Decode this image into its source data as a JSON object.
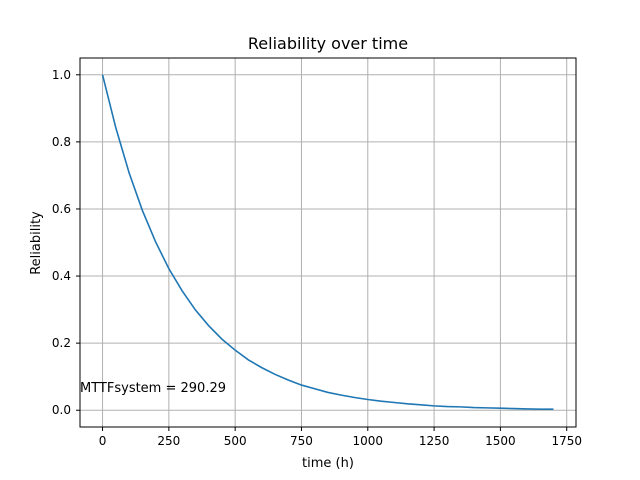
{
  "chart_data": {
    "type": "line",
    "title": "Reliability over time",
    "xlabel": "time (h)",
    "ylabel": "Reliability",
    "xlim": [
      -85,
      1785
    ],
    "ylim": [
      -0.05,
      1.05
    ],
    "xticks": [
      0,
      250,
      500,
      750,
      1000,
      1250,
      1500,
      1750
    ],
    "yticks": [
      0.0,
      0.2,
      0.4,
      0.6,
      0.8,
      1.0
    ],
    "xtick_labels": [
      "0",
      "250",
      "500",
      "750",
      "1000",
      "1250",
      "1500",
      "1750"
    ],
    "ytick_labels": [
      "0.0",
      "0.2",
      "0.4",
      "0.6",
      "0.8",
      "1.0"
    ],
    "grid": true,
    "series": [
      {
        "color": "#1f77b4",
        "x": [
          0,
          50,
          100,
          150,
          200,
          250,
          300,
          350,
          400,
          450,
          500,
          550,
          600,
          650,
          700,
          750,
          800,
          850,
          900,
          950,
          1000,
          1050,
          1100,
          1150,
          1200,
          1250,
          1300,
          1350,
          1400,
          1450,
          1500,
          1550,
          1600,
          1650,
          1700
        ],
        "y": [
          1.0,
          0.842,
          0.708,
          0.596,
          0.502,
          0.422,
          0.356,
          0.299,
          0.252,
          0.212,
          0.179,
          0.15,
          0.127,
          0.107,
          0.09,
          0.075,
          0.064,
          0.053,
          0.045,
          0.038,
          0.032,
          0.027,
          0.023,
          0.019,
          0.016,
          0.013,
          0.011,
          0.01,
          0.008,
          0.007,
          0.006,
          0.005,
          0.004,
          0.003,
          0.003
        ]
      }
    ],
    "annotation": {
      "text": "MTTFsystem = 290.29",
      "x": -85,
      "y": 0.055
    }
  }
}
